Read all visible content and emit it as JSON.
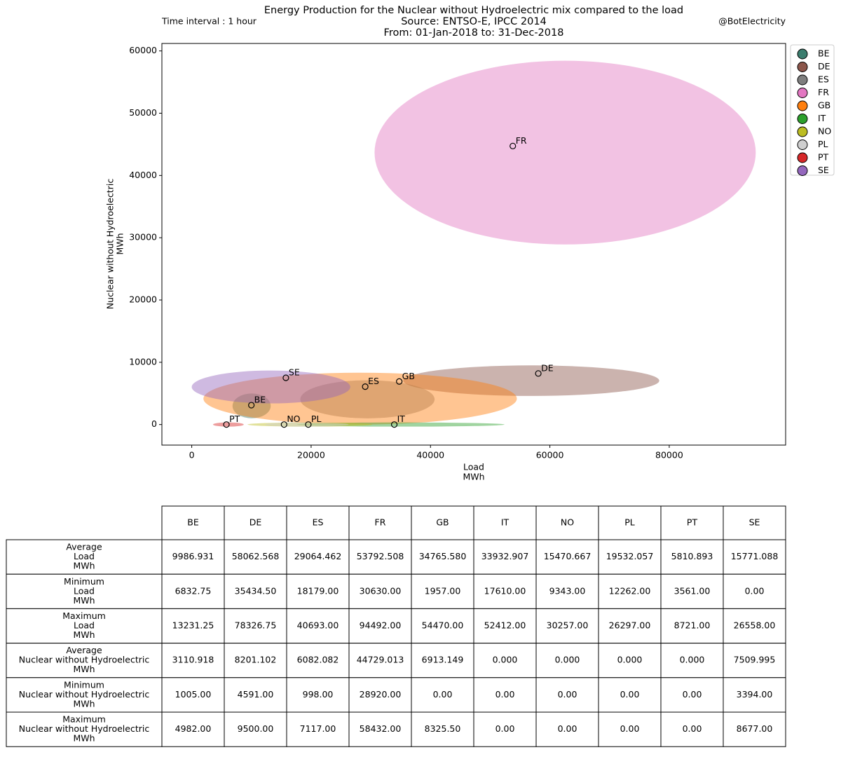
{
  "chart_data": {
    "type": "scatter",
    "title": [
      "Energy Production for the Nuclear without Hydroelectric mix compared to the load",
      "Source: ENTSO-E, IPCC 2014",
      "From: 01-Jan-2018 to: 31-Dec-2018"
    ],
    "left_note": "Time interval : 1 hour",
    "right_note": "@BotElectricity",
    "xlabel": [
      "Load",
      "MWh"
    ],
    "ylabel": [
      "Nuclear without Hydroelectric",
      "MWh"
    ],
    "xlim": [
      -5000,
      99500
    ],
    "ylim": [
      -3300,
      61200
    ],
    "xticks": [
      0,
      20000,
      40000,
      60000,
      80000
    ],
    "yticks": [
      0,
      10000,
      20000,
      30000,
      40000,
      50000,
      60000
    ],
    "legend": "upper right outside",
    "series": [
      {
        "name": "BE",
        "color": "#3b7d6e"
      },
      {
        "name": "DE",
        "color": "#8c564b"
      },
      {
        "name": "ES",
        "color": "#7f7f7f"
      },
      {
        "name": "FR",
        "color": "#e377c2"
      },
      {
        "name": "GB",
        "color": "#ff7f0e"
      },
      {
        "name": "IT",
        "color": "#2ca02c"
      },
      {
        "name": "NO",
        "color": "#bcbd22"
      },
      {
        "name": "PL",
        "color": "#cfcfcf"
      },
      {
        "name": "PT",
        "color": "#d62728"
      },
      {
        "name": "SE",
        "color": "#9467bd"
      }
    ]
  },
  "table": {
    "columns": [
      "BE",
      "DE",
      "ES",
      "FR",
      "GB",
      "IT",
      "NO",
      "PL",
      "PT",
      "SE"
    ],
    "rows": [
      {
        "label": [
          "Average",
          "Load",
          "MWh"
        ],
        "cells": [
          "9986.931",
          "58062.568",
          "29064.462",
          "53792.508",
          "34765.580",
          "33932.907",
          "15470.667",
          "19532.057",
          "5810.893",
          "15771.088"
        ]
      },
      {
        "label": [
          "Minimum",
          "Load",
          "MWh"
        ],
        "cells": [
          "6832.75",
          "35434.50",
          "18179.00",
          "30630.00",
          "1957.00",
          "17610.00",
          "9343.00",
          "12262.00",
          "3561.00",
          "0.00"
        ]
      },
      {
        "label": [
          "Maximum",
          "Load",
          "MWh"
        ],
        "cells": [
          "13231.25",
          "78326.75",
          "40693.00",
          "94492.00",
          "54470.00",
          "52412.00",
          "30257.00",
          "26297.00",
          "8721.00",
          "26558.00"
        ]
      },
      {
        "label": [
          "Average",
          "Nuclear without Hydroelectric",
          "MWh"
        ],
        "cells": [
          "3110.918",
          "8201.102",
          "6082.082",
          "44729.013",
          "6913.149",
          "0.000",
          "0.000",
          "0.000",
          "0.000",
          "7509.995"
        ]
      },
      {
        "label": [
          "Minimum",
          "Nuclear without Hydroelectric",
          "MWh"
        ],
        "cells": [
          "1005.00",
          "4591.00",
          "998.00",
          "28920.00",
          "0.00",
          "0.00",
          "0.00",
          "0.00",
          "0.00",
          "3394.00"
        ]
      },
      {
        "label": [
          "Maximum",
          "Nuclear without Hydroelectric",
          "MWh"
        ],
        "cells": [
          "4982.00",
          "9500.00",
          "7117.00",
          "58432.00",
          "8325.50",
          "0.00",
          "0.00",
          "0.00",
          "0.00",
          "8677.00"
        ]
      }
    ]
  }
}
